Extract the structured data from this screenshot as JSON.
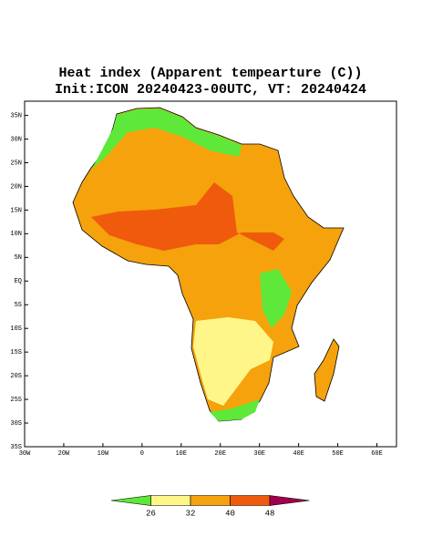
{
  "title": [
    "Heat index (Apparent tempearture (C))",
    "Init:ICON 20240423-00UTC, VT: 20240424"
  ],
  "map": {
    "lon_range": [
      -30,
      65
    ],
    "lat_range": [
      -35,
      38
    ],
    "lon_ticks": [
      {
        "value": -30,
        "label": "30W"
      },
      {
        "value": -20,
        "label": "20W"
      },
      {
        "value": -10,
        "label": "10W"
      },
      {
        "value": 0,
        "label": "0"
      },
      {
        "value": 10,
        "label": "10E"
      },
      {
        "value": 20,
        "label": "20E"
      },
      {
        "value": 30,
        "label": "30E"
      },
      {
        "value": 40,
        "label": "40E"
      },
      {
        "value": 50,
        "label": "50E"
      },
      {
        "value": 60,
        "label": "60E"
      }
    ],
    "lat_ticks": [
      {
        "value": 35,
        "label": "35N"
      },
      {
        "value": 30,
        "label": "30N"
      },
      {
        "value": 25,
        "label": "25N"
      },
      {
        "value": 20,
        "label": "20N"
      },
      {
        "value": 15,
        "label": "15N"
      },
      {
        "value": 10,
        "label": "10N"
      },
      {
        "value": 5,
        "label": "5N"
      },
      {
        "value": 0,
        "label": "EQ"
      },
      {
        "value": -5,
        "label": "5S"
      },
      {
        "value": -10,
        "label": "10S"
      },
      {
        "value": -15,
        "label": "15S"
      },
      {
        "value": -20,
        "label": "20S"
      },
      {
        "value": -25,
        "label": "25S"
      },
      {
        "value": -30,
        "label": "30S"
      },
      {
        "value": -35,
        "label": "35S"
      }
    ]
  },
  "colorbar": {
    "levels": [
      26,
      32,
      40,
      48
    ],
    "colors": [
      "#5ee83a",
      "#fff68a",
      "#f5a20c",
      "#f05a0c",
      "#a0004c"
    ]
  }
}
